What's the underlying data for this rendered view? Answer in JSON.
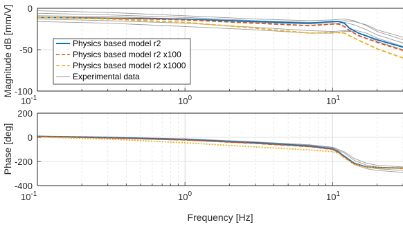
{
  "chart_data": [
    {
      "type": "line",
      "panel": "magnitude",
      "ylabel": "Magnitude dB [mm/V]",
      "xlabel": "",
      "xscale": "log",
      "xlim": [
        0.1,
        30
      ],
      "ylim": [
        -100,
        0
      ],
      "yticks": [
        "0",
        "-50",
        "-100"
      ],
      "xticks_base": [
        "10",
        "10",
        "10"
      ],
      "xticks_exp": [
        "-1",
        "0",
        "1"
      ],
      "grid": true,
      "legend": "left",
      "series": [
        {
          "name": "Physics based model r2",
          "color": "#0072BD",
          "style": "solid",
          "x": [
            0.1,
            0.3,
            1,
            3,
            7,
            10,
            11,
            12,
            13,
            15,
            20,
            30
          ],
          "y": [
            -11,
            -12,
            -13,
            -16,
            -18,
            -16,
            -16,
            -18,
            -24,
            -30,
            -38,
            -47
          ]
        },
        {
          "name": "Physics based model r2 x100",
          "color": "#D95319",
          "style": "dashed",
          "x": [
            0.1,
            0.3,
            1,
            3,
            7,
            10,
            11,
            12,
            13,
            15,
            20,
            30
          ],
          "y": [
            -11,
            -12,
            -14,
            -18,
            -21,
            -19,
            -19,
            -22,
            -27,
            -33,
            -41,
            -51
          ]
        },
        {
          "name": "Physics based model r2 x1000",
          "color": "#EDB120",
          "style": "dashed",
          "x": [
            0.1,
            0.3,
            1,
            3,
            7,
            10,
            12,
            14,
            17,
            20,
            30
          ],
          "y": [
            -11,
            -13,
            -17,
            -24,
            -30,
            -29,
            -30,
            -36,
            -43,
            -49,
            -60
          ]
        },
        {
          "name": "Experimental data",
          "color": "#9a9a9a",
          "style": "solid",
          "x": [
            0.1,
            0.3,
            1,
            3,
            7,
            10,
            12,
            14,
            17,
            20,
            30
          ],
          "y": [
            -6,
            -8,
            -11,
            -15,
            -17,
            -17,
            -15,
            -16,
            -20,
            -26,
            -35
          ]
        },
        {
          "name": "",
          "color": "#9a9a9a",
          "style": "solid",
          "x": [
            0.1,
            0.3,
            1,
            3,
            7,
            10,
            12,
            14,
            17,
            20,
            30
          ],
          "y": [
            -9,
            -10,
            -13,
            -17,
            -19,
            -19,
            -17,
            -20,
            -26,
            -32,
            -42
          ]
        },
        {
          "name": "",
          "color": "#9a9a9a",
          "style": "solid",
          "x": [
            0.1,
            0.3,
            1,
            3,
            7,
            10,
            12,
            14,
            17,
            20,
            30
          ],
          "y": [
            -13,
            -15,
            -18,
            -23,
            -27,
            -28,
            -27,
            -26,
            -30,
            -36,
            -46
          ]
        },
        {
          "name": "",
          "color": "#9a9a9a",
          "style": "solid",
          "x": [
            0.1,
            0.3,
            1,
            3,
            7,
            10,
            12,
            14,
            17,
            20,
            30
          ],
          "y": [
            -16,
            -18,
            -22,
            -26,
            -30,
            -30,
            -28,
            -28,
            -33,
            -40,
            -50
          ]
        },
        {
          "name": "",
          "color": "#9a9a9a",
          "style": "solid",
          "x": [
            0.1,
            0.3,
            1,
            3,
            7,
            10,
            12,
            14,
            17,
            20,
            30
          ],
          "y": [
            -3,
            -5,
            -9,
            -13,
            -15,
            -14,
            -13,
            -15,
            -21,
            -28,
            -38
          ]
        }
      ]
    },
    {
      "type": "line",
      "panel": "phase",
      "ylabel": "Phase [deg]",
      "xlabel": "Frequency [Hz]",
      "xscale": "log",
      "xlim": [
        0.1,
        30
      ],
      "ylim": [
        -400,
        200
      ],
      "yticks": [
        "200",
        "0",
        "-200",
        "-400"
      ],
      "xticks_base": [
        "10",
        "10",
        "10"
      ],
      "xticks_exp": [
        "-1",
        "0",
        "1"
      ],
      "grid": true,
      "series": [
        {
          "name": "Physics based model r2",
          "color": "#0072BD",
          "style": "solid",
          "x": [
            0.1,
            0.3,
            1,
            3,
            7,
            10,
            11,
            12,
            14,
            17,
            20,
            30
          ],
          "y": [
            8,
            -2,
            -18,
            -45,
            -72,
            -95,
            -120,
            -160,
            -215,
            -245,
            -250,
            -255
          ]
        },
        {
          "name": "Physics based model r2 x100",
          "color": "#D95319",
          "style": "dashed",
          "x": [
            0.1,
            0.3,
            1,
            3,
            7,
            10,
            11,
            12,
            14,
            17,
            20,
            30
          ],
          "y": [
            6,
            -5,
            -22,
            -50,
            -77,
            -100,
            -125,
            -165,
            -220,
            -247,
            -252,
            -256
          ]
        },
        {
          "name": "Physics based model r2 x1000",
          "color": "#EDB120",
          "style": "dotted",
          "x": [
            0.1,
            0.3,
            1,
            3,
            7,
            10,
            11,
            12,
            14,
            17,
            20,
            30
          ],
          "y": [
            2,
            -15,
            -45,
            -80,
            -105,
            -118,
            -135,
            -170,
            -222,
            -248,
            -253,
            -258
          ]
        },
        {
          "name": "Experimental data",
          "color": "#9a9a9a",
          "style": "solid",
          "x": [
            0.1,
            0.3,
            1,
            3,
            7,
            10,
            12,
            14,
            17,
            20,
            30
          ],
          "y": [
            10,
            0,
            -15,
            -40,
            -65,
            -85,
            -130,
            -190,
            -230,
            -245,
            -260
          ]
        },
        {
          "name": "",
          "color": "#9a9a9a",
          "style": "solid",
          "x": [
            0.1,
            0.3,
            1,
            3,
            7,
            10,
            12,
            14,
            17,
            20,
            30
          ],
          "y": [
            7,
            -4,
            -20,
            -47,
            -72,
            -95,
            -150,
            -210,
            -245,
            -260,
            -275
          ]
        },
        {
          "name": "",
          "color": "#9a9a9a",
          "style": "solid",
          "x": [
            0.1,
            0.3,
            1,
            3,
            7,
            10,
            12,
            14,
            17,
            20,
            30
          ],
          "y": [
            4,
            -7,
            -24,
            -52,
            -78,
            -100,
            -160,
            -225,
            -260,
            -275,
            -290
          ]
        },
        {
          "name": "",
          "color": "#9a9a9a",
          "style": "solid",
          "x": [
            0.1,
            0.3,
            1,
            3,
            7,
            10,
            12,
            14,
            17,
            20,
            30
          ],
          "y": [
            12,
            2,
            -12,
            -38,
            -62,
            -82,
            -120,
            -175,
            -215,
            -232,
            -245
          ]
        }
      ]
    }
  ]
}
